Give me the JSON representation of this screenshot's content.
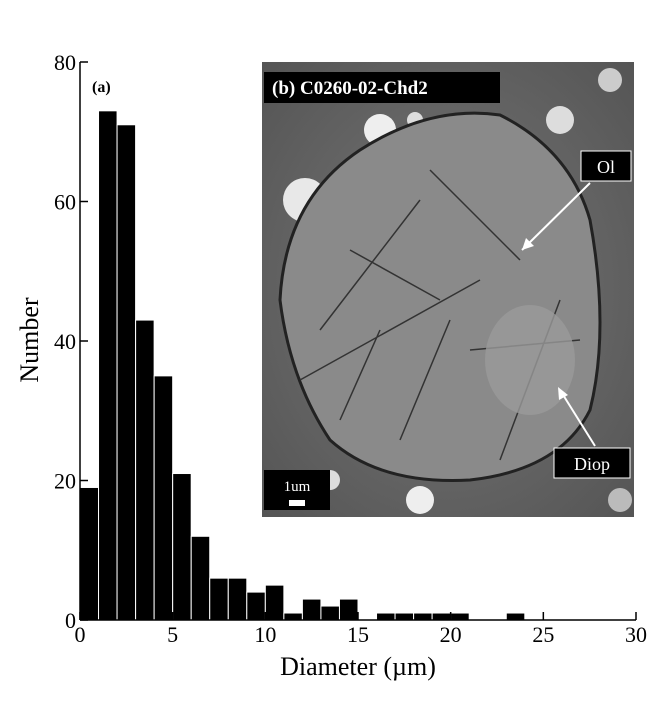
{
  "chart_data": {
    "type": "histogram",
    "xlabel": "Diameter (µm)",
    "ylabel": "Number",
    "bins": [
      0,
      1,
      2,
      3,
      4,
      5,
      6,
      7,
      8,
      9,
      10,
      11,
      12,
      13,
      14,
      15,
      16,
      17,
      18,
      19,
      20,
      21,
      22,
      23,
      24
    ],
    "values": [
      19,
      73,
      71,
      43,
      35,
      21,
      12,
      6,
      6,
      4,
      5,
      1,
      3,
      2,
      3,
      0,
      1,
      1,
      1,
      1,
      1,
      0,
      0,
      1
    ],
    "color": "#000000",
    "xlim": [
      0,
      30
    ],
    "xticks": [
      0,
      5,
      10,
      15,
      20,
      25,
      30
    ],
    "ylim": [
      0,
      80
    ],
    "yticks": [
      0,
      20,
      40,
      60,
      80
    ],
    "annotations": {
      "panel_a": "(a)",
      "panel_b": "(b) C0260-02-Chd2",
      "olivine": "Ol",
      "diopside": "Diop",
      "scale_bar": "1um"
    }
  }
}
